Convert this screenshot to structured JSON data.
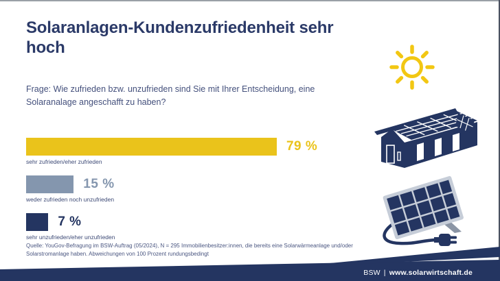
{
  "page": {
    "title": "Solaranlagen-Kundenzufriedenheit sehr hoch",
    "question": "Frage: Wie zufrieden bzw. unzufrieden sind Sie mit Ihrer Entscheidung, eine Solaranalage angeschafft zu haben?",
    "source": "Quelle: YouGov-Befragung im BSW-Auftrag (05/2024), N = 295 Immobilienbesitzer:innen, die bereits eine Solarwärmeanlage und/oder Solarstromanlage haben. Abweichungen von 100 Prozent rundungsbedingt",
    "footer": {
      "org": "BSW",
      "separator": "|",
      "url": "www.solarwirtschaft.de"
    }
  },
  "chart_data": {
    "type": "bar",
    "orientation": "horizontal",
    "title": "Solaranlagen-Kundenzufriedenheit sehr hoch",
    "categories": [
      "sehr zufrieden/eher zufrieden",
      "weder zufrieden noch unzufrieden",
      "sehr unzufrieden/eher unzufrieden"
    ],
    "values": [
      79,
      15,
      7
    ],
    "value_labels": [
      "79 %",
      "15 %",
      "7 %"
    ],
    "bar_colors": [
      "#eac31b",
      "#8496ae",
      "#243561"
    ],
    "xlim": [
      0,
      100
    ],
    "grid": false,
    "legend": false
  },
  "icons": {
    "sun": "sun-icon",
    "house": "solar-house-icon",
    "panel": "solar-panel-plug-icon"
  },
  "colors": {
    "navy": "#243561",
    "title_navy": "#2b3a68",
    "yellow": "#f2c713",
    "gray_blue": "#8496ae",
    "footer_bg": "#243561",
    "footer_text": "#ffffff"
  }
}
